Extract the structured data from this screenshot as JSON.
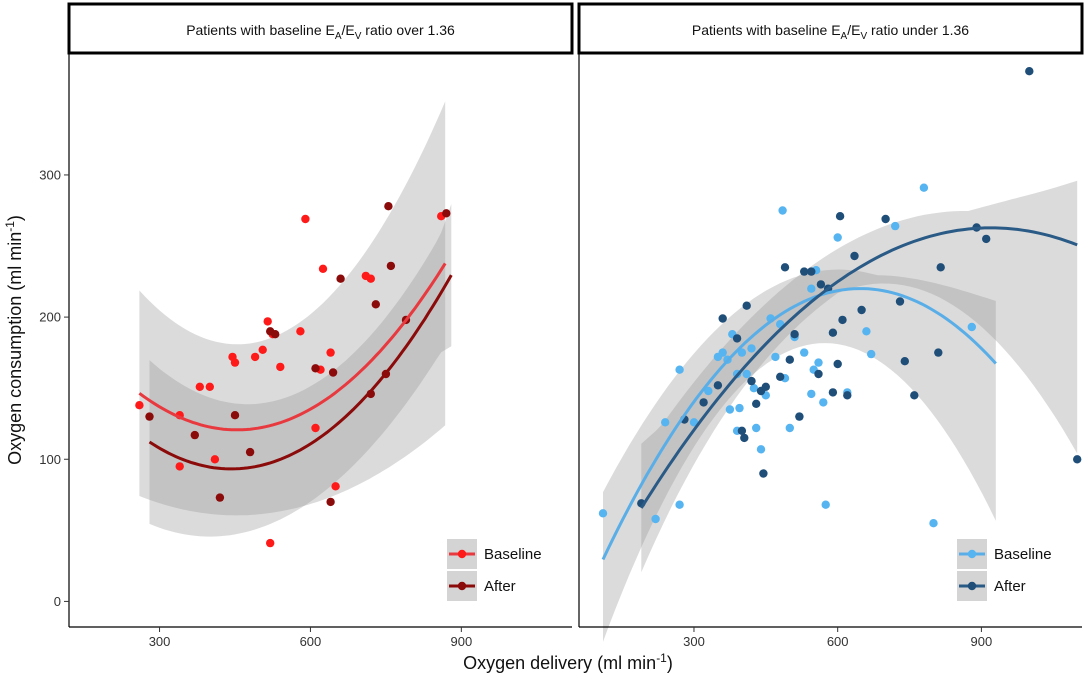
{
  "chart_data": [
    {
      "type": "scatter",
      "panel_title_parts": [
        "Patients with baseline E",
        "A",
        "/E",
        "V",
        " ratio over 1.36"
      ],
      "xlim": [
        120,
        1120
      ],
      "ylim": [
        -18,
        390
      ],
      "x_ticks": [
        300,
        600,
        900
      ],
      "y_ticks": [
        0,
        100,
        200,
        300
      ],
      "legend_position": "bottom-right",
      "series": [
        {
          "name": "Baseline",
          "color": "#ff1a1a",
          "line_color": "#e8393f",
          "points": [
            [
              260,
              138
            ],
            [
              340,
              131
            ],
            [
              340,
              95
            ],
            [
              380,
              151
            ],
            [
              400,
              151
            ],
            [
              410,
              100
            ],
            [
              445,
              172
            ],
            [
              450,
              168
            ],
            [
              490,
              172
            ],
            [
              505,
              177
            ],
            [
              515,
              197
            ],
            [
              525,
              188
            ],
            [
              540,
              165
            ],
            [
              580,
              190
            ],
            [
              590,
              269
            ],
            [
              620,
              163
            ],
            [
              625,
              234
            ],
            [
              640,
              175
            ],
            [
              650,
              81
            ],
            [
              710,
              229
            ],
            [
              720,
              227
            ],
            [
              520,
              41
            ],
            [
              610,
              122
            ],
            [
              860,
              271
            ]
          ],
          "fit": {
            "x": [
              260,
              868
            ],
            "coef": [
              261.6,
              -0.6207,
              0.0006835
            ]
          },
          "band": {
            "x": [
              260,
              868
            ],
            "lower_coef": [
              135.7,
              -0.3322,
              0.000367
            ],
            "upper_coef": [
              387.5,
              -0.9092,
              0.001
            ],
            "edge": 75
          }
        },
        {
          "name": "After",
          "color": "#8b0a0a",
          "line_color": "#8b0a0a",
          "points": [
            [
              280,
              130
            ],
            [
              370,
              117
            ],
            [
              420,
              73
            ],
            [
              450,
              131
            ],
            [
              480,
              105
            ],
            [
              520,
              190
            ],
            [
              530,
              188
            ],
            [
              610,
              164
            ],
            [
              640,
              70
            ],
            [
              645,
              161
            ],
            [
              660,
              227
            ],
            [
              720,
              146
            ],
            [
              730,
              209
            ],
            [
              750,
              160
            ],
            [
              755,
              278
            ],
            [
              790,
              198
            ],
            [
              870,
              273
            ],
            [
              760,
              236
            ]
          ],
          "fit": {
            "x": [
              280,
              880
            ],
            "coef": [
              233.2,
              -0.6322,
              0.0007137
            ]
          },
          "band": {
            "x": [
              280,
              880
            ],
            "lower_coef": [
              144.1,
              -0.4922,
              0.000615
            ],
            "upper_coef": [
              322.3,
              -0.7722,
              0.000812
            ],
            "edge": 70
          }
        }
      ]
    },
    {
      "type": "scatter",
      "panel_title_parts": [
        "Patients with baseline E",
        "A",
        "/E",
        "V",
        " ratio under 1.36"
      ],
      "xlim": [
        60,
        1110
      ],
      "ylim": [
        -18,
        390
      ],
      "x_ticks": [
        300,
        600,
        900
      ],
      "y_ticks": [
        0,
        100,
        200,
        300
      ],
      "legend_position": "bottom-right",
      "series": [
        {
          "name": "Baseline",
          "color": "#56b4f0",
          "line_color": "#5aaee8",
          "points": [
            [
              110,
              62
            ],
            [
              220,
              58
            ],
            [
              240,
              126
            ],
            [
              270,
              163
            ],
            [
              270,
              68
            ],
            [
              300,
              126
            ],
            [
              330,
              148
            ],
            [
              350,
              172
            ],
            [
              360,
              175
            ],
            [
              370,
              170
            ],
            [
              375,
              135
            ],
            [
              380,
              188
            ],
            [
              390,
              120
            ],
            [
              395,
              136
            ],
            [
              400,
              175
            ],
            [
              410,
              160
            ],
            [
              420,
              178
            ],
            [
              425,
              150
            ],
            [
              430,
              122
            ],
            [
              440,
              107
            ],
            [
              450,
              145
            ],
            [
              460,
              199
            ],
            [
              470,
              172
            ],
            [
              480,
              195
            ],
            [
              485,
              275
            ],
            [
              490,
              157
            ],
            [
              500,
              122
            ],
            [
              510,
              186
            ],
            [
              520,
              130
            ],
            [
              530,
              175
            ],
            [
              545,
              146
            ],
            [
              550,
              163
            ],
            [
              555,
              233
            ],
            [
              560,
              168
            ],
            [
              570,
              140
            ],
            [
              575,
              68
            ],
            [
              600,
              256
            ],
            [
              620,
              147
            ],
            [
              660,
              190
            ],
            [
              670,
              174
            ],
            [
              720,
              264
            ],
            [
              780,
              291
            ],
            [
              800,
              55
            ],
            [
              880,
              193
            ],
            [
              545,
              220
            ],
            [
              390,
              160
            ]
          ],
          "fit": {
            "x": [
              110,
              930
            ],
            "coef": [
              -56.5,
              0.8545,
              -0.00066
            ]
          },
          "band": {
            "x": [
              110,
              930
            ],
            "lower_coef": [
              -140.0,
              1.123,
              -0.00098
            ],
            "upper_coef": [
              -1.0,
              0.779,
              -0.000647
            ],
            "edge": 60
          }
        },
        {
          "name": "After",
          "color": "#1f4e79",
          "line_color": "#2a5a86",
          "points": [
            [
              190,
              69
            ],
            [
              280,
              128
            ],
            [
              320,
              140
            ],
            [
              350,
              152
            ],
            [
              360,
              199
            ],
            [
              390,
              185
            ],
            [
              400,
              120
            ],
            [
              405,
              115
            ],
            [
              410,
              208
            ],
            [
              420,
              155
            ],
            [
              430,
              139
            ],
            [
              440,
              148
            ],
            [
              445,
              90
            ],
            [
              450,
              151
            ],
            [
              480,
              158
            ],
            [
              490,
              235
            ],
            [
              500,
              170
            ],
            [
              510,
              188
            ],
            [
              530,
              232
            ],
            [
              545,
              232
            ],
            [
              560,
              160
            ],
            [
              565,
              223
            ],
            [
              580,
              220
            ],
            [
              590,
              189
            ],
            [
              600,
              167
            ],
            [
              605,
              271
            ],
            [
              610,
              198
            ],
            [
              620,
              145
            ],
            [
              635,
              243
            ],
            [
              650,
              205
            ],
            [
              700,
              269
            ],
            [
              730,
              211
            ],
            [
              740,
              169
            ],
            [
              760,
              145
            ],
            [
              810,
              175
            ],
            [
              815,
              235
            ],
            [
              890,
              263
            ],
            [
              910,
              255
            ],
            [
              1000,
              373
            ],
            [
              1100,
              100
            ],
            [
              520,
              130
            ],
            [
              590,
              147
            ]
          ],
          "fit": {
            "x": [
              190,
              1100
            ],
            "coef": [
              -50.3,
              0.6807,
              -0.00037
            ]
          },
          "band": {
            "x": [
              190,
              1100
            ],
            "lower_coef": [
              -133.0,
              1.024,
              -0.000735
            ],
            "upper_coef": [
              -7.0,
              0.65,
              -0.000375
            ],
            "edge": 62
          }
        }
      ]
    }
  ],
  "axes": {
    "xlabel_main": "Oxygen delivery (ml min",
    "xlabel_sup": "-1",
    "xlabel_close": ")",
    "ylabel_main": "Oxygen consumption (ml min",
    "ylabel_sup": "-1",
    "ylabel_close": ")"
  },
  "style": {
    "band_fill": "#999999",
    "band_opacity": 0.35,
    "legend_key_fill": "#d4d4d4",
    "axis_color": "#000000"
  }
}
